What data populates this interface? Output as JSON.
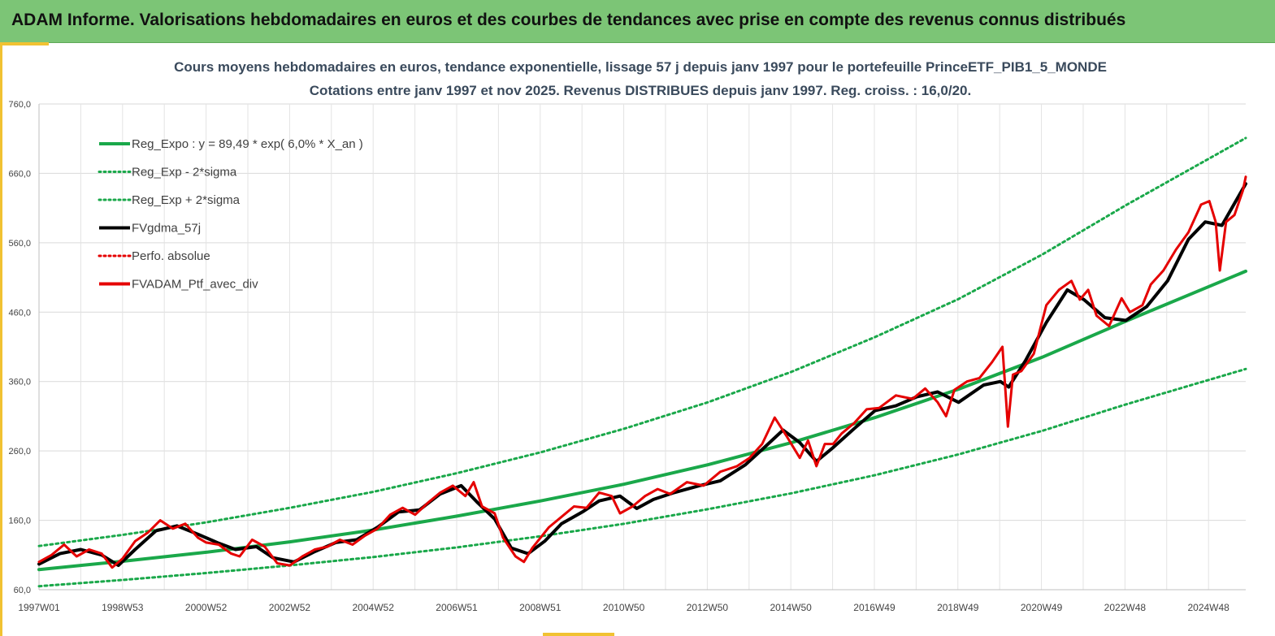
{
  "banner": {
    "title": "ADAM Informe. Valorisations hebdomadaires en euros et des courbes de tendances avec prise en compte des revenus connus distribués"
  },
  "chart_data": {
    "type": "line",
    "title": "Cours moyens hebdomadaires  en euros, tendance exponentielle, lissage 57 j depuis janv 1997 pour le portefeuille PrinceETF_PIB1_5_MONDE",
    "subtitle": "Cotations entre janv 1997 et nov 2025. Revenus DISTRIBUES depuis janv 1997. Reg. croiss. : 16,0/20.",
    "xlabel": "",
    "ylabel": "",
    "ylim": [
      60,
      760
    ],
    "xlim": [
      1997.0,
      2025.87
    ],
    "yticks": [
      "60,0",
      "160,0",
      "260,0",
      "360,0",
      "460,0",
      "560,0",
      "660,0",
      "760,0"
    ],
    "xticks": [
      "1997W01",
      "1998W53",
      "2000W52",
      "2002W52",
      "2004W52",
      "2006W51",
      "2008W51",
      "2010W50",
      "2012W50",
      "2014W50",
      "2016W49",
      "2018W49",
      "2020W49",
      "2022W48",
      "2024W48"
    ],
    "grid": true,
    "legend_position": "top-left",
    "legend": [
      {
        "label": "Reg_Expo : y = 89,49 * exp( 6,0% *  X_an )",
        "color": "#1aa84a",
        "style": "solid"
      },
      {
        "label": "Reg_Exp - 2*sigma",
        "color": "#1aa84a",
        "style": "dotted"
      },
      {
        "label": "Reg_Exp + 2*sigma",
        "color": "#1aa84a",
        "style": "dotted"
      },
      {
        "label": "FVgdma_57j",
        "color": "#000000",
        "style": "solid"
      },
      {
        "label": "Perfo. absolue",
        "color": "#e50000",
        "style": "dotted"
      },
      {
        "label": "FVADAM_Ptf_avec_div",
        "color": "#e50000",
        "style": "solid"
      }
    ],
    "series": [
      {
        "name": "Reg_Expo : y = 89,49 * exp( 6,0% *  X_an )",
        "x": [
          1997.0,
          1999.0,
          2001.0,
          2003.0,
          2005.0,
          2007.0,
          2009.0,
          2011.0,
          2013.0,
          2015.0,
          2017.0,
          2019.0,
          2021.0,
          2023.0,
          2025.87
        ],
        "values": [
          89,
          101,
          114,
          129,
          146,
          166,
          188,
          212,
          240,
          272,
          308,
          349,
          395,
          447,
          519
        ]
      },
      {
        "name": "Reg_Exp - 2*sigma",
        "x": [
          1997.0,
          1999.0,
          2001.0,
          2003.0,
          2005.0,
          2007.0,
          2009.0,
          2011.0,
          2013.0,
          2015.0,
          2017.0,
          2019.0,
          2021.0,
          2023.0,
          2025.87
        ],
        "values": [
          65,
          74,
          84,
          95,
          107,
          121,
          137,
          155,
          176,
          199,
          225,
          255,
          289,
          327,
          378
        ]
      },
      {
        "name": "Reg_Exp + 2*sigma",
        "x": [
          1997.0,
          1999.0,
          2001.0,
          2003.0,
          2005.0,
          2007.0,
          2009.0,
          2011.0,
          2013.0,
          2015.0,
          2017.0,
          2019.0,
          2021.0,
          2023.0,
          2025.87
        ],
        "values": [
          123,
          139,
          157,
          178,
          201,
          228,
          258,
          292,
          330,
          374,
          424,
          479,
          543,
          614,
          711
        ]
      },
      {
        "name": "FVgdma_57j",
        "x": [
          1997.0,
          1997.5,
          1998.0,
          1998.5,
          1998.9,
          1999.3,
          1999.8,
          2000.3,
          2000.8,
          2001.3,
          2001.7,
          2002.2,
          2002.6,
          2003.1,
          2003.6,
          2004.1,
          2004.6,
          2005.1,
          2005.6,
          2006.1,
          2006.6,
          2007.1,
          2007.5,
          2007.9,
          2008.3,
          2008.7,
          2009.1,
          2009.5,
          2010.0,
          2010.4,
          2010.9,
          2011.3,
          2011.7,
          2012.2,
          2012.8,
          2013.3,
          2013.9,
          2014.3,
          2014.8,
          2015.2,
          2015.6,
          2016.0,
          2016.5,
          2017.0,
          2017.5,
          2018.0,
          2018.5,
          2019.0,
          2019.6,
          2020.0,
          2020.2,
          2020.6,
          2021.1,
          2021.6,
          2022.0,
          2022.5,
          2023.0,
          2023.5,
          2024.0,
          2024.5,
          2024.9,
          2025.3,
          2025.87
        ],
        "values": [
          97,
          112,
          118,
          110,
          95,
          118,
          145,
          152,
          140,
          127,
          118,
          122,
          106,
          100,
          115,
          128,
          132,
          150,
          172,
          175,
          198,
          210,
          185,
          162,
          120,
          112,
          130,
          155,
          172,
          188,
          195,
          177,
          190,
          200,
          210,
          217,
          240,
          262,
          290,
          272,
          245,
          265,
          292,
          318,
          325,
          338,
          345,
          330,
          355,
          360,
          352,
          390,
          445,
          492,
          478,
          452,
          448,
          468,
          505,
          565,
          590,
          585,
          645
        ]
      },
      {
        "name": "FVADAM_Ptf_avec_div",
        "x": [
          1997.0,
          1997.3,
          1997.6,
          1997.9,
          1998.2,
          1998.5,
          1998.75,
          1999.0,
          1999.3,
          1999.6,
          1999.9,
          2000.2,
          2000.5,
          2000.8,
          2001.0,
          2001.3,
          2001.6,
          2001.8,
          2002.1,
          2002.4,
          2002.7,
          2003.0,
          2003.3,
          2003.6,
          2003.9,
          2004.2,
          2004.5,
          2004.8,
          2005.1,
          2005.4,
          2005.7,
          2006.0,
          2006.3,
          2006.6,
          2006.9,
          2007.2,
          2007.4,
          2007.6,
          2007.9,
          2008.1,
          2008.4,
          2008.6,
          2008.8,
          2009.0,
          2009.2,
          2009.5,
          2009.8,
          2010.1,
          2010.4,
          2010.7,
          2010.9,
          2011.2,
          2011.5,
          2011.8,
          2012.1,
          2012.5,
          2012.9,
          2013.3,
          2013.7,
          2014.0,
          2014.3,
          2014.6,
          2014.9,
          2015.2,
          2015.4,
          2015.6,
          2015.8,
          2016.0,
          2016.2,
          2016.5,
          2016.8,
          2017.1,
          2017.5,
          2017.9,
          2018.2,
          2018.5,
          2018.7,
          2018.9,
          2019.2,
          2019.5,
          2019.8,
          2020.05,
          2020.18,
          2020.3,
          2020.5,
          2020.8,
          2021.1,
          2021.4,
          2021.7,
          2021.9,
          2022.1,
          2022.3,
          2022.6,
          2022.9,
          2023.1,
          2023.4,
          2023.6,
          2023.9,
          2024.2,
          2024.5,
          2024.8,
          2025.0,
          2025.15,
          2025.25,
          2025.4,
          2025.6,
          2025.8,
          2025.87
        ],
        "values": [
          100,
          110,
          125,
          108,
          118,
          112,
          92,
          105,
          130,
          142,
          160,
          148,
          155,
          135,
          128,
          125,
          112,
          108,
          132,
          122,
          98,
          95,
          108,
          118,
          122,
          132,
          125,
          138,
          148,
          168,
          178,
          168,
          185,
          200,
          210,
          195,
          215,
          180,
          170,
          135,
          108,
          100,
          120,
          135,
          150,
          165,
          180,
          178,
          200,
          195,
          170,
          180,
          195,
          205,
          198,
          215,
          210,
          230,
          238,
          250,
          270,
          308,
          280,
          250,
          275,
          238,
          270,
          270,
          285,
          300,
          320,
          322,
          340,
          335,
          350,
          330,
          310,
          348,
          360,
          365,
          388,
          410,
          295,
          370,
          375,
          400,
          470,
          492,
          505,
          478,
          492,
          455,
          440,
          480,
          460,
          470,
          500,
          520,
          550,
          575,
          615,
          620,
          590,
          520,
          590,
          600,
          635,
          655
        ]
      }
    ]
  }
}
